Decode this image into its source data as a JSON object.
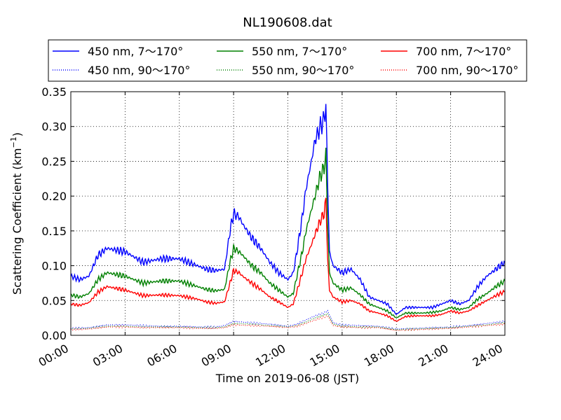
{
  "chart_data": {
    "type": "line",
    "title": "NL190608.dat",
    "xlabel": "Time on 2019-06-08 (JST)",
    "ylabel_main": "Scattering Coefficient (km",
    "ylabel_sup": "−1",
    "ylabel_close": ")",
    "xlim_hours": [
      0,
      24
    ],
    "ylim": [
      0,
      0.35
    ],
    "grid": true,
    "legend_position": "top",
    "x_ticks": [
      {
        "v": 0,
        "label": "00:00"
      },
      {
        "v": 3,
        "label": "03:00"
      },
      {
        "v": 6,
        "label": "06:00"
      },
      {
        "v": 9,
        "label": "09:00"
      },
      {
        "v": 12,
        "label": "12:00"
      },
      {
        "v": 15,
        "label": "15:00"
      },
      {
        "v": 18,
        "label": "18:00"
      },
      {
        "v": 21,
        "label": "21:00"
      },
      {
        "v": 24,
        "label": "24:00"
      }
    ],
    "y_ticks": [
      {
        "v": 0.0,
        "label": "0.00"
      },
      {
        "v": 0.05,
        "label": "0.05"
      },
      {
        "v": 0.1,
        "label": "0.10"
      },
      {
        "v": 0.15,
        "label": "0.15"
      },
      {
        "v": 0.2,
        "label": "0.20"
      },
      {
        "v": 0.25,
        "label": "0.25"
      },
      {
        "v": 0.3,
        "label": "0.30"
      },
      {
        "v": 0.35,
        "label": "0.35"
      }
    ],
    "x_unit": "hours since 00:00 JST",
    "series": [
      {
        "name": "450 nm, 7～170°",
        "color": "#0000ff",
        "dash": "solid",
        "x": [
          0,
          0.5,
          1.0,
          1.5,
          2.0,
          3.0,
          4.0,
          5.0,
          6.0,
          7.0,
          7.5,
          8.0,
          8.5,
          8.8,
          9.0,
          9.3,
          9.5,
          10.0,
          10.5,
          11.0,
          11.5,
          12.0,
          12.3,
          12.5,
          12.8,
          13.0,
          13.3,
          13.5,
          13.8,
          14.0,
          14.1,
          14.2,
          14.3,
          14.5,
          15.0,
          15.5,
          16.0,
          16.5,
          17.0,
          17.5,
          18.0,
          18.5,
          19.0,
          19.5,
          20.0,
          20.5,
          21.0,
          21.5,
          22.0,
          22.5,
          23.0,
          23.5,
          24.0
        ],
        "y": [
          0.085,
          0.08,
          0.085,
          0.115,
          0.125,
          0.12,
          0.105,
          0.11,
          0.11,
          0.1,
          0.095,
          0.093,
          0.095,
          0.15,
          0.175,
          0.17,
          0.16,
          0.14,
          0.125,
          0.105,
          0.09,
          0.08,
          0.09,
          0.12,
          0.17,
          0.21,
          0.25,
          0.28,
          0.3,
          0.31,
          0.33,
          0.22,
          0.12,
          0.1,
          0.09,
          0.095,
          0.08,
          0.055,
          0.05,
          0.045,
          0.03,
          0.04,
          0.04,
          0.04,
          0.04,
          0.045,
          0.05,
          0.045,
          0.05,
          0.07,
          0.085,
          0.095,
          0.105
        ]
      },
      {
        "name": "550 nm, 7～170°",
        "color": "#008000",
        "dash": "solid",
        "x": [
          0,
          0.5,
          1.0,
          1.5,
          2.0,
          3.0,
          4.0,
          5.0,
          6.0,
          7.0,
          7.5,
          8.0,
          8.5,
          8.8,
          9.0,
          9.3,
          9.5,
          10.0,
          10.5,
          11.0,
          11.5,
          12.0,
          12.3,
          12.5,
          12.8,
          13.0,
          13.3,
          13.5,
          13.8,
          14.0,
          14.1,
          14.2,
          14.3,
          14.5,
          15.0,
          15.5,
          16.0,
          16.5,
          17.0,
          17.5,
          18.0,
          18.5,
          19.0,
          19.5,
          20.0,
          20.5,
          21.0,
          21.5,
          22.0,
          22.5,
          23.0,
          23.5,
          24.0
        ],
        "y": [
          0.058,
          0.055,
          0.06,
          0.08,
          0.09,
          0.085,
          0.075,
          0.078,
          0.078,
          0.07,
          0.066,
          0.064,
          0.066,
          0.105,
          0.125,
          0.12,
          0.115,
          0.1,
          0.09,
          0.075,
          0.065,
          0.055,
          0.06,
          0.085,
          0.12,
          0.15,
          0.18,
          0.2,
          0.23,
          0.24,
          0.26,
          0.16,
          0.09,
          0.075,
          0.065,
          0.068,
          0.058,
          0.045,
          0.04,
          0.035,
          0.025,
          0.032,
          0.032,
          0.032,
          0.033,
          0.035,
          0.04,
          0.037,
          0.04,
          0.052,
          0.06,
          0.07,
          0.078
        ]
      },
      {
        "name": "700 nm, 7～170°",
        "color": "#ff0000",
        "dash": "solid",
        "x": [
          0,
          0.5,
          1.0,
          1.5,
          2.0,
          3.0,
          4.0,
          5.0,
          6.0,
          7.0,
          7.5,
          8.0,
          8.5,
          8.8,
          9.0,
          9.3,
          9.5,
          10.0,
          10.5,
          11.0,
          11.5,
          12.0,
          12.3,
          12.5,
          12.8,
          13.0,
          13.3,
          13.5,
          13.8,
          14.0,
          14.1,
          14.2,
          14.3,
          14.5,
          15.0,
          15.5,
          16.0,
          16.5,
          17.0,
          17.5,
          18.0,
          18.5,
          19.0,
          19.5,
          20.0,
          20.5,
          21.0,
          21.5,
          22.0,
          22.5,
          23.0,
          23.5,
          24.0
        ],
        "y": [
          0.045,
          0.043,
          0.047,
          0.062,
          0.07,
          0.065,
          0.057,
          0.058,
          0.057,
          0.052,
          0.048,
          0.046,
          0.048,
          0.075,
          0.093,
          0.09,
          0.085,
          0.075,
          0.066,
          0.055,
          0.048,
          0.04,
          0.045,
          0.063,
          0.09,
          0.11,
          0.13,
          0.145,
          0.165,
          0.175,
          0.195,
          0.11,
          0.065,
          0.055,
          0.048,
          0.05,
          0.045,
          0.035,
          0.032,
          0.028,
          0.02,
          0.027,
          0.028,
          0.028,
          0.028,
          0.03,
          0.035,
          0.032,
          0.035,
          0.043,
          0.05,
          0.057,
          0.063
        ]
      },
      {
        "name": "450 nm, 90～170°",
        "color": "#0000ff",
        "dash": "dotted",
        "x": [
          0,
          1,
          2,
          3,
          4,
          5,
          6,
          7,
          8,
          8.5,
          9,
          10,
          11,
          12,
          12.5,
          13,
          13.5,
          14,
          14.2,
          14.5,
          15,
          16,
          17,
          18,
          19,
          20,
          21,
          22,
          23,
          24
        ],
        "y": [
          0.01,
          0.011,
          0.015,
          0.015,
          0.014,
          0.013,
          0.013,
          0.012,
          0.012,
          0.014,
          0.02,
          0.018,
          0.016,
          0.013,
          0.016,
          0.022,
          0.028,
          0.032,
          0.035,
          0.018,
          0.015,
          0.014,
          0.013,
          0.009,
          0.01,
          0.011,
          0.012,
          0.014,
          0.017,
          0.02
        ]
      },
      {
        "name": "550 nm, 90～170°",
        "color": "#008000",
        "dash": "dotted",
        "x": [
          0,
          1,
          2,
          3,
          4,
          5,
          6,
          7,
          8,
          8.5,
          9,
          10,
          11,
          12,
          12.5,
          13,
          13.5,
          14,
          14.2,
          14.5,
          15,
          16,
          17,
          18,
          19,
          20,
          21,
          22,
          23,
          24
        ],
        "y": [
          0.009,
          0.01,
          0.013,
          0.013,
          0.012,
          0.012,
          0.012,
          0.011,
          0.011,
          0.012,
          0.017,
          0.016,
          0.014,
          0.012,
          0.014,
          0.019,
          0.025,
          0.029,
          0.031,
          0.016,
          0.013,
          0.012,
          0.012,
          0.008,
          0.009,
          0.01,
          0.011,
          0.013,
          0.015,
          0.018
        ]
      },
      {
        "name": "700 nm, 90～170°",
        "color": "#ff0000",
        "dash": "dotted",
        "x": [
          0,
          1,
          2,
          3,
          4,
          5,
          6,
          7,
          8,
          8.5,
          9,
          10,
          11,
          12,
          12.5,
          13,
          13.5,
          14,
          14.2,
          14.5,
          15,
          16,
          17,
          18,
          19,
          20,
          21,
          22,
          23,
          24
        ],
        "y": [
          0.008,
          0.009,
          0.012,
          0.012,
          0.011,
          0.011,
          0.011,
          0.01,
          0.01,
          0.011,
          0.015,
          0.014,
          0.013,
          0.011,
          0.013,
          0.017,
          0.022,
          0.026,
          0.028,
          0.014,
          0.012,
          0.011,
          0.011,
          0.007,
          0.008,
          0.009,
          0.01,
          0.012,
          0.014,
          0.016
        ]
      }
    ]
  }
}
